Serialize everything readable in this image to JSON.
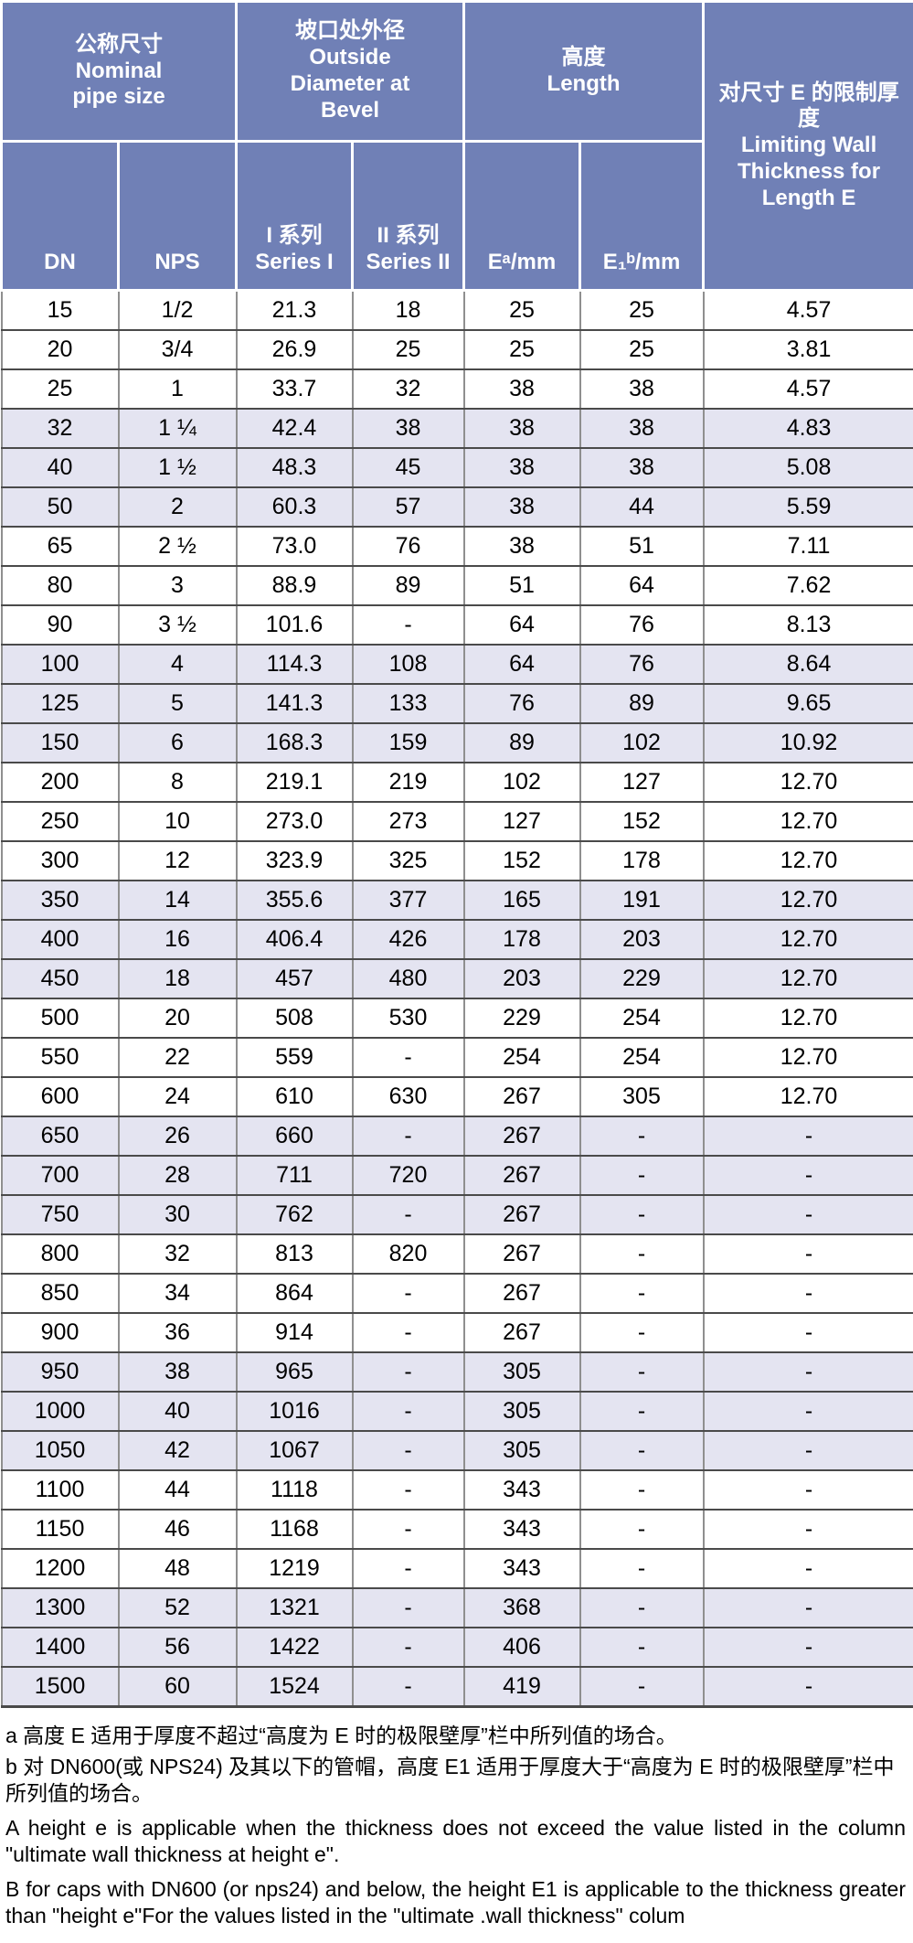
{
  "colors": {
    "header_bg": "#7080b6",
    "header_text": "#ffffff",
    "row_shaded_bg": "#e4e4f1",
    "row_plain_bg": "#ffffff",
    "grid_dark": "#4a4a4a",
    "grid_gray": "#8f8f8f",
    "body_text": "#000000"
  },
  "table": {
    "header_groups": [
      {
        "lines": [
          "公称尺寸",
          "Nominal",
          "pipe size"
        ]
      },
      {
        "lines": [
          "坡口处外径",
          "Outside",
          "Diameter at",
          "Bevel"
        ]
      },
      {
        "lines": [
          "高度",
          "Length"
        ]
      },
      {
        "lines": [
          "对尺寸 E 的限制厚度",
          "Limiting Wall",
          "Thickness for",
          "Length E"
        ]
      }
    ],
    "subheaders": [
      {
        "lines": [
          "DN"
        ]
      },
      {
        "lines": [
          "NPS"
        ]
      },
      {
        "lines": [
          "I 系列",
          "Series I"
        ]
      },
      {
        "lines": [
          "II 系列",
          "Series II"
        ]
      },
      {
        "lines": [
          "Eᵃ/mm"
        ]
      },
      {
        "lines": [
          "E₁ᵇ/mm"
        ]
      }
    ],
    "column_keys": [
      "dn",
      "nps",
      "series1",
      "series2",
      "e-mm",
      "e1-mm",
      "limit-thickness"
    ],
    "rows": [
      {
        "cells": [
          "15",
          "1/2",
          "21.3",
          "18",
          "25",
          "25",
          "4.57"
        ],
        "shaded": false
      },
      {
        "cells": [
          "20",
          "3/4",
          "26.9",
          "25",
          "25",
          "25",
          "3.81"
        ],
        "shaded": false
      },
      {
        "cells": [
          "25",
          "1",
          "33.7",
          "32",
          "38",
          "38",
          "4.57"
        ],
        "shaded": false
      },
      {
        "cells": [
          "32",
          "1 ¼",
          "42.4",
          "38",
          "38",
          "38",
          "4.83"
        ],
        "shaded": true
      },
      {
        "cells": [
          "40",
          "1 ½",
          "48.3",
          "45",
          "38",
          "38",
          "5.08"
        ],
        "shaded": true
      },
      {
        "cells": [
          "50",
          "2",
          "60.3",
          "57",
          "38",
          "44",
          "5.59"
        ],
        "shaded": true
      },
      {
        "cells": [
          "65",
          "2 ½",
          "73.0",
          "76",
          "38",
          "51",
          "7.11"
        ],
        "shaded": false
      },
      {
        "cells": [
          "80",
          "3",
          "88.9",
          "89",
          "51",
          "64",
          "7.62"
        ],
        "shaded": false
      },
      {
        "cells": [
          "90",
          "3 ½",
          "101.6",
          "-",
          "64",
          "76",
          "8.13"
        ],
        "shaded": false
      },
      {
        "cells": [
          "100",
          "4",
          "114.3",
          "108",
          "64",
          "76",
          "8.64"
        ],
        "shaded": true
      },
      {
        "cells": [
          "125",
          "5",
          "141.3",
          "133",
          "76",
          "89",
          "9.65"
        ],
        "shaded": true
      },
      {
        "cells": [
          "150",
          "6",
          "168.3",
          "159",
          "89",
          "102",
          "10.92"
        ],
        "shaded": true
      },
      {
        "cells": [
          "200",
          "8",
          "219.1",
          "219",
          "102",
          "127",
          "12.70"
        ],
        "shaded": false
      },
      {
        "cells": [
          "250",
          "10",
          "273.0",
          "273",
          "127",
          "152",
          "12.70"
        ],
        "shaded": false
      },
      {
        "cells": [
          "300",
          "12",
          "323.9",
          "325",
          "152",
          "178",
          "12.70"
        ],
        "shaded": false
      },
      {
        "cells": [
          "350",
          "14",
          "355.6",
          "377",
          "165",
          "191",
          "12.70"
        ],
        "shaded": true
      },
      {
        "cells": [
          "400",
          "16",
          "406.4",
          "426",
          "178",
          "203",
          "12.70"
        ],
        "shaded": true
      },
      {
        "cells": [
          "450",
          "18",
          "457",
          "480",
          "203",
          "229",
          "12.70"
        ],
        "shaded": true
      },
      {
        "cells": [
          "500",
          "20",
          "508",
          "530",
          "229",
          "254",
          "12.70"
        ],
        "shaded": false
      },
      {
        "cells": [
          "550",
          "22",
          "559",
          "-",
          "254",
          "254",
          "12.70"
        ],
        "shaded": false
      },
      {
        "cells": [
          "600",
          "24",
          "610",
          "630",
          "267",
          "305",
          "12.70"
        ],
        "shaded": false
      },
      {
        "cells": [
          "650",
          "26",
          "660",
          "-",
          "267",
          "-",
          "-"
        ],
        "shaded": true
      },
      {
        "cells": [
          "700",
          "28",
          "711",
          "720",
          "267",
          "-",
          "-"
        ],
        "shaded": true
      },
      {
        "cells": [
          "750",
          "30",
          "762",
          "-",
          "267",
          "-",
          "-"
        ],
        "shaded": true
      },
      {
        "cells": [
          "800",
          "32",
          "813",
          "820",
          "267",
          "-",
          "-"
        ],
        "shaded": false
      },
      {
        "cells": [
          "850",
          "34",
          "864",
          "-",
          "267",
          "-",
          "-"
        ],
        "shaded": false
      },
      {
        "cells": [
          "900",
          "36",
          "914",
          "-",
          "267",
          "-",
          "-"
        ],
        "shaded": false
      },
      {
        "cells": [
          "950",
          "38",
          "965",
          "-",
          "305",
          "-",
          "-"
        ],
        "shaded": true
      },
      {
        "cells": [
          "1000",
          "40",
          "1016",
          "-",
          "305",
          "-",
          "-"
        ],
        "shaded": true
      },
      {
        "cells": [
          "1050",
          "42",
          "1067",
          "-",
          "305",
          "-",
          "-"
        ],
        "shaded": true
      },
      {
        "cells": [
          "1100",
          "44",
          "1118",
          "-",
          "343",
          "-",
          "-"
        ],
        "shaded": false
      },
      {
        "cells": [
          "1150",
          "46",
          "1168",
          "-",
          "343",
          "-",
          "-"
        ],
        "shaded": false
      },
      {
        "cells": [
          "1200",
          "48",
          "1219",
          "-",
          "343",
          "-",
          "-"
        ],
        "shaded": false
      },
      {
        "cells": [
          "1300",
          "52",
          "1321",
          "-",
          "368",
          "-",
          "-"
        ],
        "shaded": true
      },
      {
        "cells": [
          "1400",
          "56",
          "1422",
          "-",
          "406",
          "-",
          "-"
        ],
        "shaded": true
      },
      {
        "cells": [
          "1500",
          "60",
          "1524",
          "-",
          "419",
          "-",
          "-"
        ],
        "shaded": true
      }
    ]
  },
  "footnotes": {
    "a_zh": "a 高度 E 适用于厚度不超过“高度为 E 时的极限壁厚”栏中所列值的场合。",
    "b_zh": "b 对 DN600(或 NPS24) 及其以下的管帽，高度 E1 适用于厚度大于“高度为 E 时的极限壁厚”栏中所列值的场合。",
    "a_en": "A height e is applicable when the thickness does not exceed the value listed in the column \"ultimate wall thickness at height e\".",
    "b_en": "B for caps with DN600 (or nps24) and below, the height E1 is applicable to the thickness greater than \"height e\"For the values listed in the \"ultimate .wall thickness\" colum"
  }
}
